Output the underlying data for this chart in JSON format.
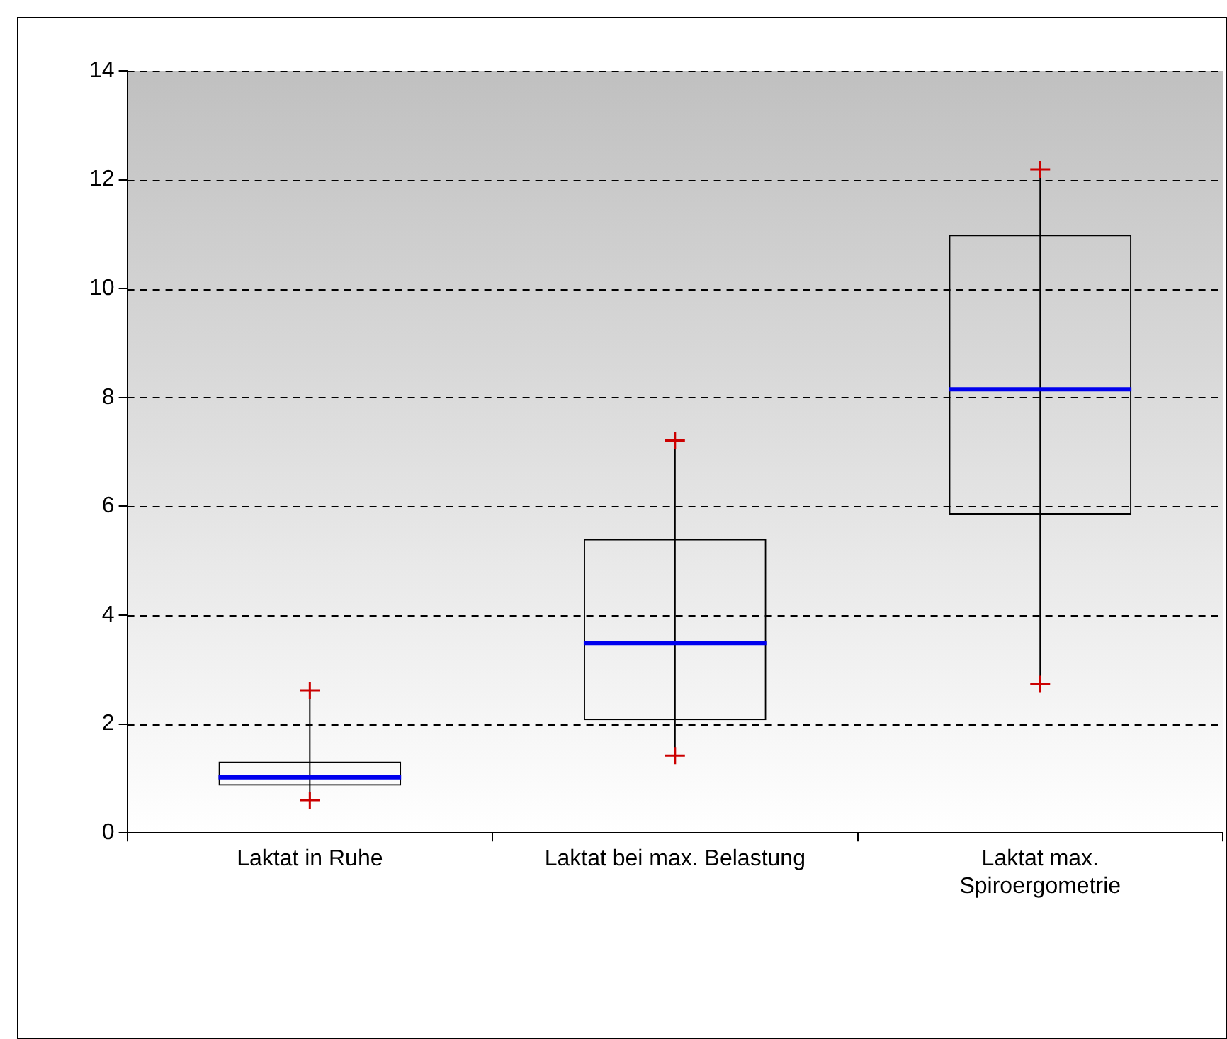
{
  "chart_data": {
    "type": "box",
    "categories": [
      "Laktat in Ruhe",
      "Laktat bei max. Belastung",
      "Laktat max.\nSpiroergometrie"
    ],
    "boxes": [
      {
        "low": 0.6,
        "q1": 0.87,
        "median": 1.02,
        "q3": 1.31,
        "high": 2.62
      },
      {
        "low": 1.42,
        "q1": 2.07,
        "median": 3.49,
        "q3": 5.4,
        "high": 7.21
      },
      {
        "low": 2.73,
        "q1": 5.85,
        "median": 8.15,
        "q3": 10.99,
        "high": 12.19
      }
    ],
    "ylim": [
      0,
      14
    ],
    "yticks": [
      0,
      2,
      4,
      6,
      8,
      10,
      12,
      14
    ],
    "grid": "y"
  }
}
